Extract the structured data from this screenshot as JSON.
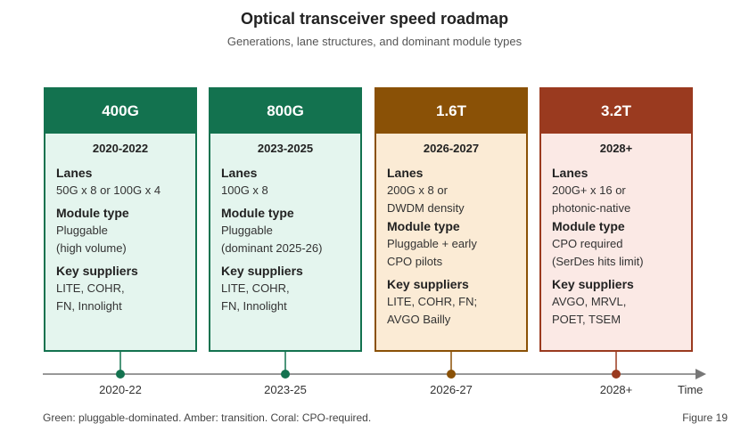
{
  "title": "Optical transceiver speed roadmap",
  "subtitle": "Generations, lane structures, and dominant module types",
  "generations": [
    {
      "speed": "400G",
      "years": "2020-2022",
      "lanes_title": "Lanes",
      "lanes": [
        "50G x 8 or 100G x 4"
      ],
      "module_title": "Module type",
      "module": [
        "Pluggable",
        "(high volume)"
      ],
      "suppliers_title": "Key suppliers",
      "suppliers": [
        "LITE, COHR,",
        "FN, Innolight"
      ],
      "color": "#13724f"
    },
    {
      "speed": "800G",
      "years": "2023-2025",
      "lanes_title": "Lanes",
      "lanes": [
        "100G x 8"
      ],
      "module_title": "Module type",
      "module": [
        "Pluggable",
        "(dominant 2025-26)"
      ],
      "suppliers_title": "Key suppliers",
      "suppliers": [
        "LITE, COHR,",
        "FN, Innolight"
      ],
      "color": "#13724f"
    },
    {
      "speed": "1.6T",
      "years": "2026-2027",
      "lanes_title": "Lanes",
      "lanes": [
        "200G x 8 or",
        "DWDM density"
      ],
      "module_title": "Module type",
      "module": [
        "Pluggable + early",
        "CPO pilots"
      ],
      "suppliers_title": "Key suppliers",
      "suppliers": [
        "LITE, COHR, FN;",
        "AVGO Bailly"
      ],
      "color": "#8a5106"
    },
    {
      "speed": "3.2T",
      "years": "2028+",
      "lanes_title": "Lanes",
      "lanes": [
        "200G+ x 16 or",
        "photonic-native"
      ],
      "module_title": "Module type",
      "module": [
        "CPO required",
        "(SerDes hits limit)"
      ],
      "suppliers_title": "Key suppliers",
      "suppliers": [
        "AVGO, MRVL,",
        "POET, TSEM"
      ],
      "color": "#9a3a1f"
    }
  ],
  "timeline": {
    "labels": [
      "2020-22",
      "2023-25",
      "2026-27",
      "2028+"
    ],
    "axis_label": "Time",
    "marker_colors": [
      "#13724f",
      "#13724f",
      "#8a5106",
      "#9a3a1f"
    ]
  },
  "caption": "Green: pluggable-dominated. Amber: transition. Coral: CPO-required.",
  "figure_label": "Figure 19"
}
